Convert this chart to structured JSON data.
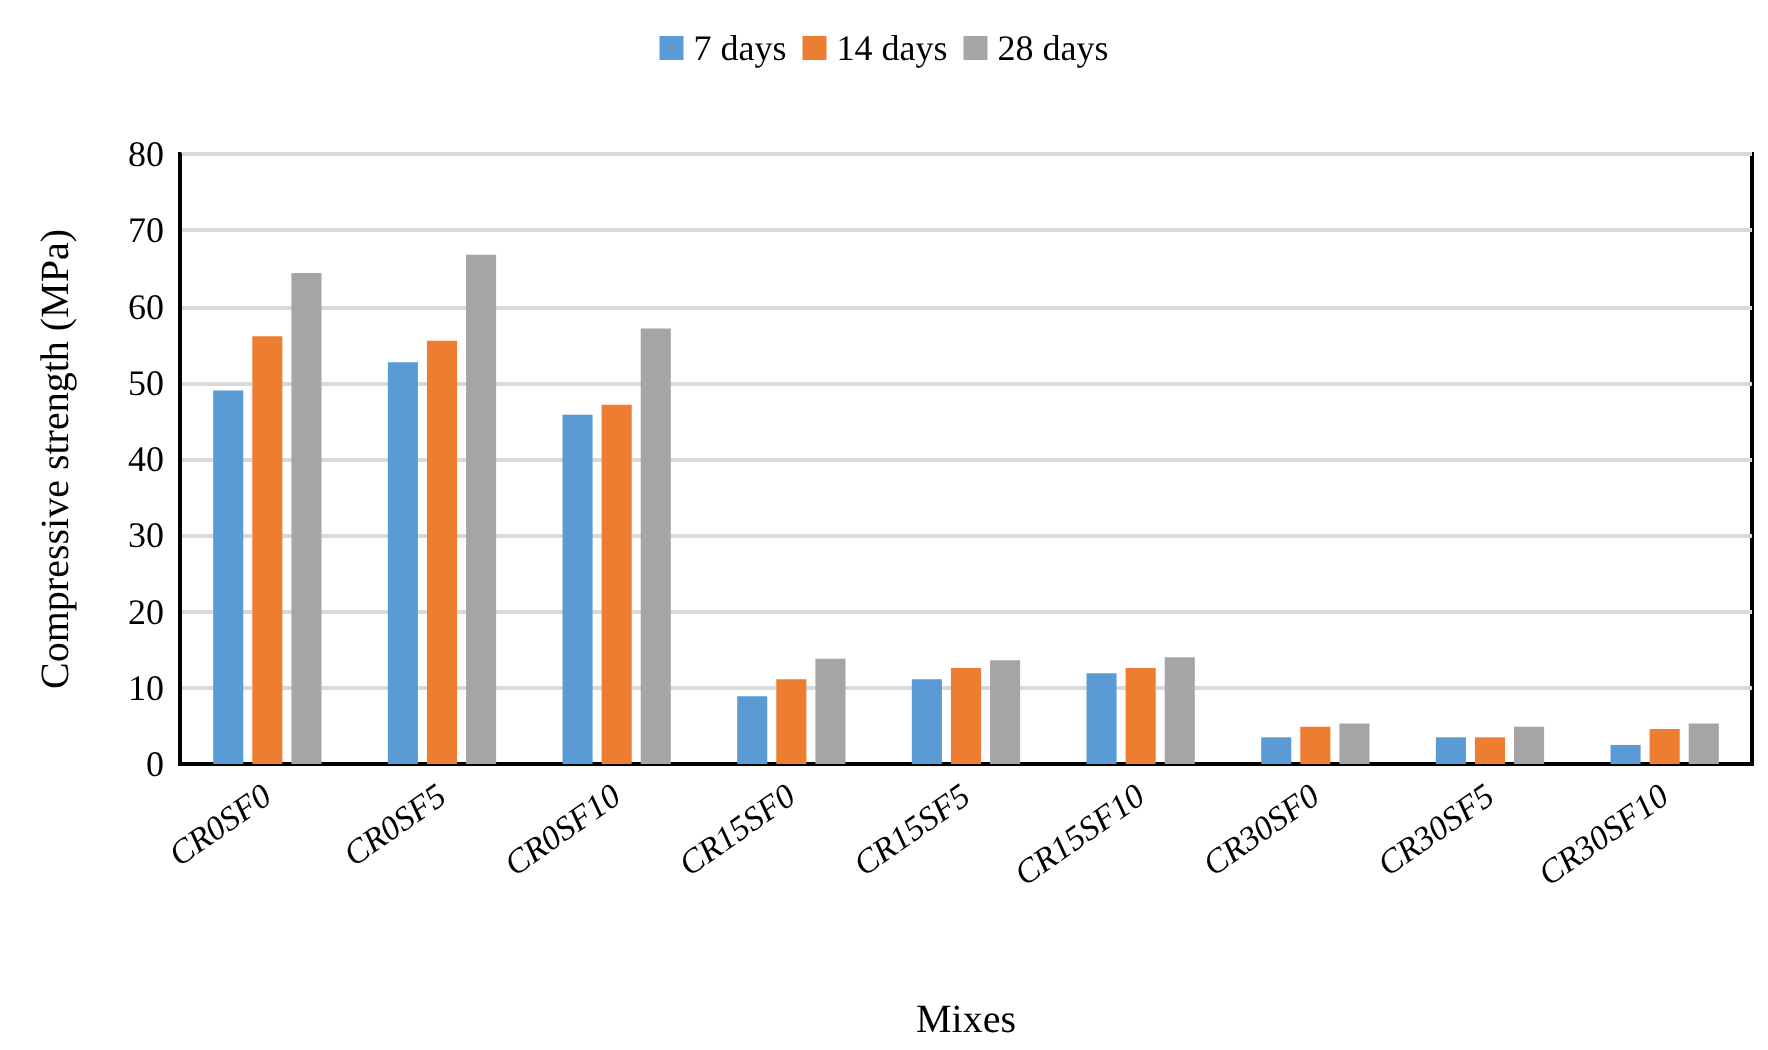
{
  "chart_data": {
    "type": "bar",
    "xlabel": "Mixes",
    "ylabel": "Compressive strength (MPa)",
    "categories": [
      "CR0SF0",
      "CR0SF5",
      "CR0SF10",
      "CR15SF0",
      "CR15SF5",
      "CR15SF10",
      "CR30SF0",
      "CR30SF5",
      "CR30SF10"
    ],
    "series": [
      {
        "name": "7 days",
        "color": "#5b9bd5",
        "values": [
          49,
          52.7,
          45.8,
          8.9,
          11.1,
          11.9,
          3.5,
          3.5,
          2.5
        ]
      },
      {
        "name": "14 days",
        "color": "#ed7d31",
        "values": [
          56.1,
          55.5,
          47.1,
          11.1,
          12.6,
          12.6,
          4.9,
          3.5,
          4.6
        ]
      },
      {
        "name": "28 days",
        "color": "#a5a5a5",
        "values": [
          64.4,
          66.8,
          57.1,
          13.8,
          13.6,
          14,
          5.3,
          4.9,
          5.3
        ]
      }
    ],
    "ylim": [
      0,
      80
    ],
    "yticks": [
      0,
      10,
      20,
      30,
      40,
      50,
      60,
      70,
      80
    ],
    "grid": "y",
    "legend": "top"
  }
}
